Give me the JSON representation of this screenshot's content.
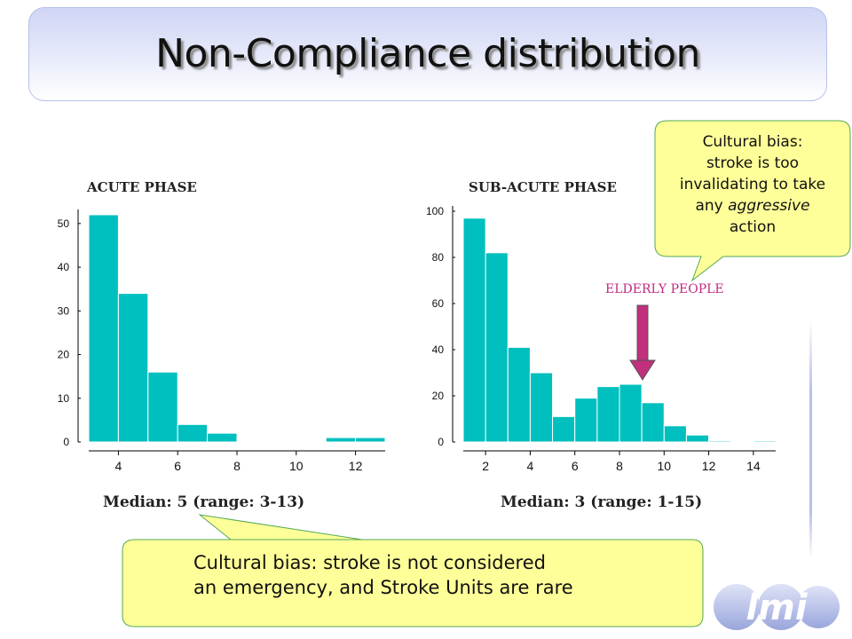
{
  "title": "Non-Compliance distribution",
  "callouts": {
    "top_right_lines": [
      "Cultural bias:",
      "stroke is too",
      "invalidating to take",
      "any",
      "aggressive",
      "action"
    ],
    "bottom_line1": "Cultural bias: stroke is not considered",
    "bottom_line2": "an emergency, and Stroke Units are rare"
  },
  "annotation": {
    "elderly_label": "ELDERLY PEOPLE",
    "arrow_color": "#c0307c"
  },
  "logo_text": "lmi",
  "colors": {
    "bar": "#00bfbf",
    "bar_edge": "#ffffff",
    "callout_fill": "#ffff99",
    "callout_stroke": "#55aa55",
    "title_text": "#111111"
  },
  "chart_data": [
    {
      "type": "bar",
      "title": "ACUTE PHASE",
      "median_label": "Median: 5 (range: 3-13)",
      "x": [
        3.5,
        4.5,
        5.5,
        6.5,
        7.5,
        11.5,
        12.5
      ],
      "values": [
        52,
        34,
        16,
        4,
        2,
        1,
        1
      ],
      "xlim": [
        3,
        13
      ],
      "ylim": [
        0,
        52
      ],
      "xticks": [
        4,
        6,
        8,
        10,
        12
      ],
      "yticks": [
        0,
        10,
        20,
        30,
        40,
        50
      ],
      "grid": false
    },
    {
      "type": "bar",
      "title": "SUB-ACUTE PHASE",
      "median_label": "Median: 3  (range: 1-15)",
      "x": [
        1.5,
        2.5,
        3.5,
        4.5,
        5.5,
        6.5,
        7.5,
        8.5,
        9.5,
        10.5,
        11.5,
        12.5,
        14.5
      ],
      "values": [
        97,
        82,
        41,
        30,
        11,
        19,
        24,
        25,
        17,
        7,
        3,
        0.5,
        0.5
      ],
      "xlim": [
        1,
        15
      ],
      "ylim": [
        0,
        100
      ],
      "xticks": [
        2,
        4,
        6,
        8,
        10,
        12,
        14
      ],
      "yticks": [
        0,
        20,
        40,
        60,
        80,
        100
      ],
      "grid": false
    }
  ]
}
